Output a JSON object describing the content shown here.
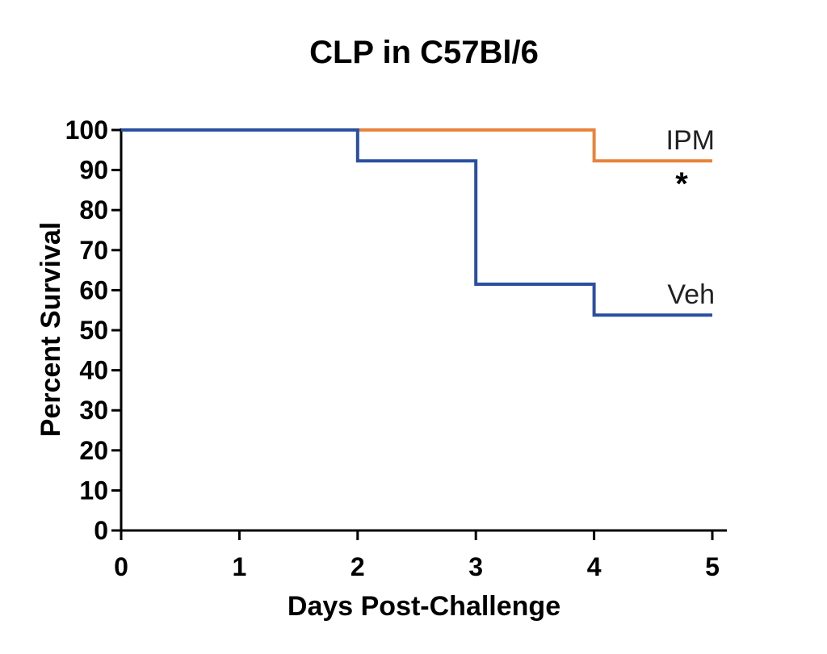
{
  "chart_data": {
    "type": "line",
    "step": true,
    "title": "CLP in C57Bl/6",
    "xlabel": "Days Post-Challenge",
    "ylabel": "Percent Survival",
    "xlim": [
      0,
      5
    ],
    "ylim": [
      0,
      100
    ],
    "xticks": [
      0,
      1,
      2,
      3,
      4,
      5
    ],
    "yticks": [
      0,
      10,
      20,
      30,
      40,
      50,
      60,
      70,
      80,
      90,
      100
    ],
    "grid": false,
    "series": [
      {
        "name": "IPM",
        "color": "#E8833A",
        "points": [
          [
            0,
            100
          ],
          [
            4,
            100
          ],
          [
            4,
            92.3
          ],
          [
            5,
            92.3
          ]
        ]
      },
      {
        "name": "Veh",
        "color": "#2B4FA0",
        "points": [
          [
            0,
            100
          ],
          [
            2,
            100
          ],
          [
            2,
            92.3
          ],
          [
            3,
            92.3
          ],
          [
            3,
            61.5
          ],
          [
            4,
            61.5
          ],
          [
            4,
            53.8
          ],
          [
            5,
            53.8
          ]
        ]
      }
    ],
    "annotations": [
      {
        "text": "*",
        "series": "IPM"
      }
    ]
  }
}
